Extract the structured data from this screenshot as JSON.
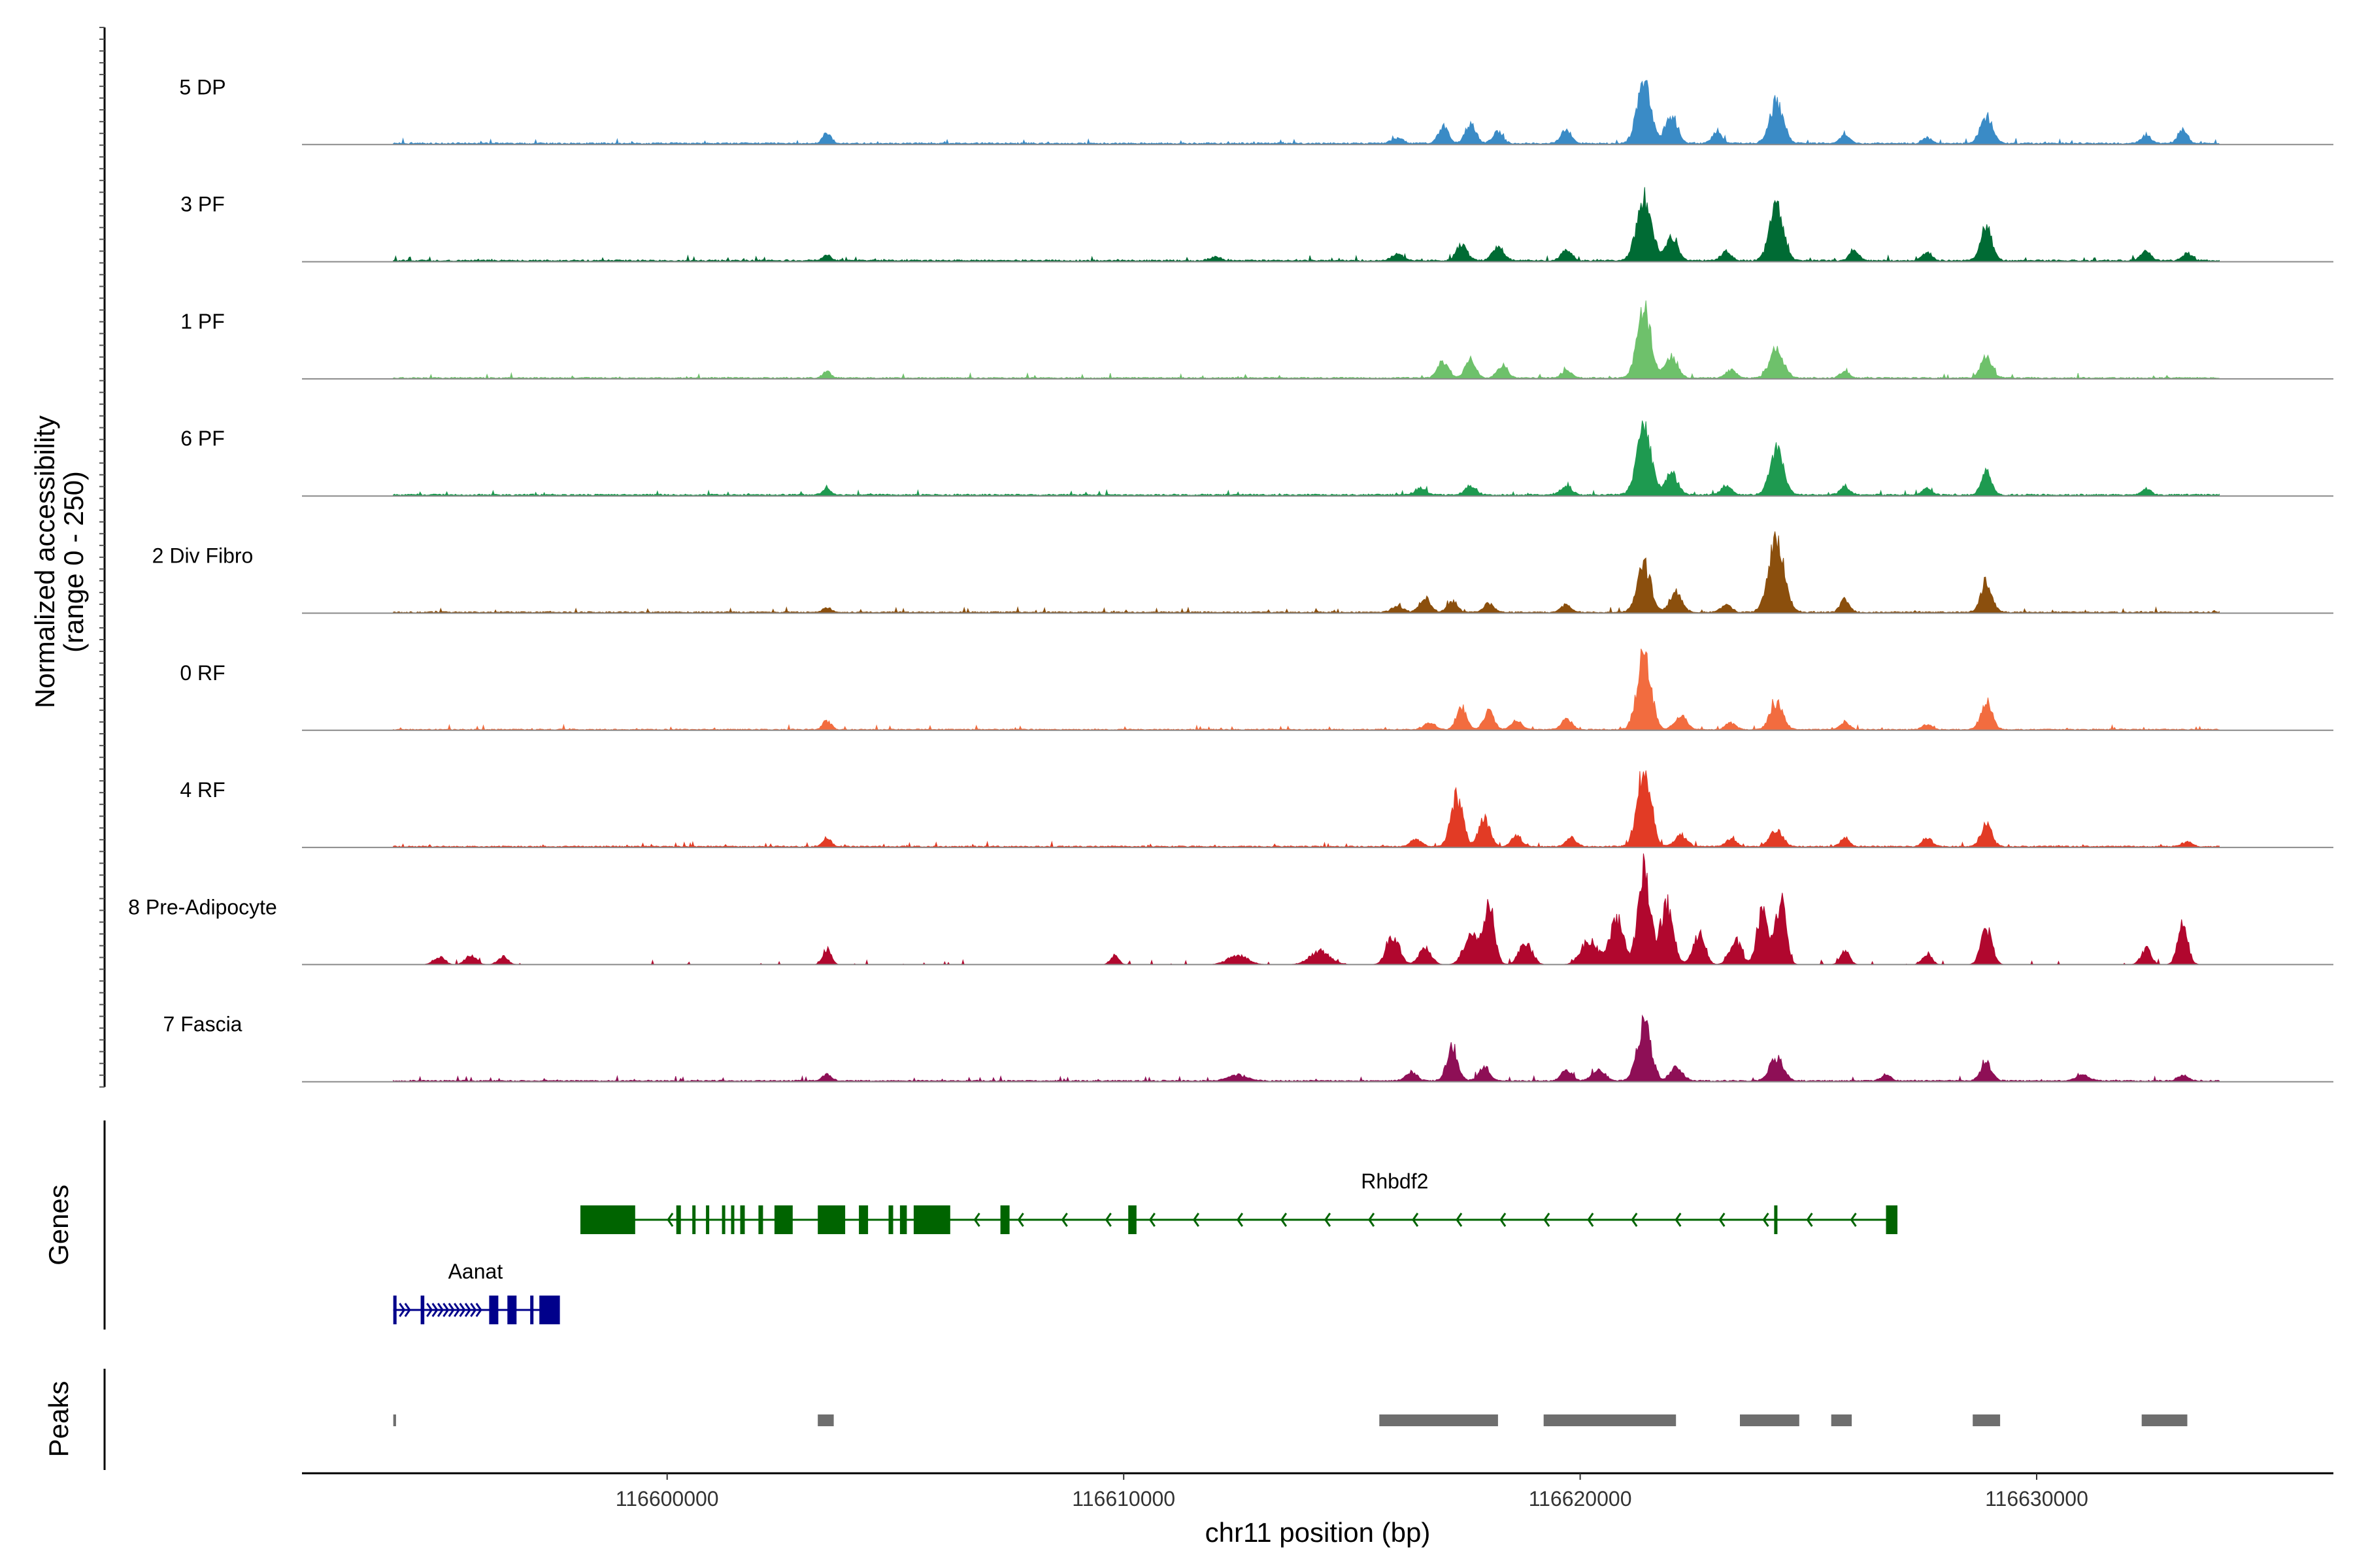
{
  "chart_data": {
    "type": "area",
    "title": "",
    "ylabel": "Normalized accessibility\n(range 0 - 250)",
    "xlabel": "chr11 position (bp)",
    "xlim": [
      116592000,
      116636500
    ],
    "ylim": [
      0,
      250
    ],
    "x_ticks": [
      116600000,
      116610000,
      116620000,
      116630000
    ],
    "x_tick_labels": [
      "116600000",
      "116610000",
      "116620000",
      "116630000"
    ],
    "signal_extent": [
      116594000,
      116634000
    ],
    "tracks": [
      {
        "name": "5 DP",
        "color": "#3a8bc6",
        "baseline": 0.015,
        "peaks": [
          [
            116603500,
            0.1,
            90
          ],
          [
            116616000,
            0.05,
            120
          ],
          [
            116617000,
            0.15,
            110
          ],
          [
            116617600,
            0.18,
            110
          ],
          [
            116618200,
            0.1,
            110
          ],
          [
            116619700,
            0.12,
            110
          ],
          [
            116621400,
            0.54,
            150
          ],
          [
            116622000,
            0.25,
            130
          ],
          [
            116623000,
            0.1,
            110
          ],
          [
            116624300,
            0.37,
            150
          ],
          [
            116625800,
            0.08,
            100
          ],
          [
            116627600,
            0.05,
            100
          ],
          [
            116628900,
            0.25,
            130
          ],
          [
            116632400,
            0.07,
            110
          ],
          [
            116633200,
            0.12,
            110
          ]
        ]
      },
      {
        "name": "3 PF",
        "color": "#006b34",
        "baseline": 0.015,
        "peaks": [
          [
            116603500,
            0.05,
            90
          ],
          [
            116612000,
            0.03,
            120
          ],
          [
            116616000,
            0.06,
            120
          ],
          [
            116617400,
            0.14,
            120
          ],
          [
            116618200,
            0.12,
            120
          ],
          [
            116619700,
            0.1,
            110
          ],
          [
            116621400,
            0.55,
            160
          ],
          [
            116622000,
            0.2,
            130
          ],
          [
            116623200,
            0.08,
            110
          ],
          [
            116624300,
            0.48,
            150
          ],
          [
            116626000,
            0.1,
            100
          ],
          [
            116627600,
            0.08,
            100
          ],
          [
            116628900,
            0.3,
            120
          ],
          [
            116632400,
            0.08,
            110
          ],
          [
            116633300,
            0.06,
            110
          ]
        ]
      },
      {
        "name": "1 PF",
        "color": "#6ec16b",
        "baseline": 0.012,
        "peaks": [
          [
            116603500,
            0.06,
            90
          ],
          [
            116617000,
            0.15,
            120
          ],
          [
            116617600,
            0.17,
            110
          ],
          [
            116618300,
            0.12,
            110
          ],
          [
            116619700,
            0.07,
            110
          ],
          [
            116621400,
            0.62,
            150
          ],
          [
            116622000,
            0.2,
            130
          ],
          [
            116623300,
            0.07,
            110
          ],
          [
            116624300,
            0.26,
            150
          ],
          [
            116625800,
            0.06,
            100
          ],
          [
            116628900,
            0.18,
            120
          ]
        ]
      },
      {
        "name": "6 PF",
        "color": "#1e9a50",
        "baseline": 0.015,
        "peaks": [
          [
            116603500,
            0.06,
            90
          ],
          [
            116616500,
            0.06,
            120
          ],
          [
            116617600,
            0.08,
            120
          ],
          [
            116619700,
            0.08,
            120
          ],
          [
            116621400,
            0.56,
            160
          ],
          [
            116622000,
            0.2,
            130
          ],
          [
            116623200,
            0.08,
            110
          ],
          [
            116624300,
            0.4,
            150
          ],
          [
            116625800,
            0.08,
            100
          ],
          [
            116627600,
            0.06,
            100
          ],
          [
            116628900,
            0.2,
            110
          ],
          [
            116632400,
            0.05,
            100
          ]
        ]
      },
      {
        "name": "2 Div Fibro",
        "color": "#8b4f0d",
        "baseline": 0.012,
        "peaks": [
          [
            116603500,
            0.04,
            90
          ],
          [
            116616000,
            0.06,
            120
          ],
          [
            116616600,
            0.12,
            120
          ],
          [
            116617200,
            0.1,
            110
          ],
          [
            116618000,
            0.08,
            110
          ],
          [
            116619700,
            0.07,
            110
          ],
          [
            116621400,
            0.42,
            150
          ],
          [
            116622100,
            0.18,
            130
          ],
          [
            116623200,
            0.07,
            110
          ],
          [
            116624300,
            0.64,
            170
          ],
          [
            116625800,
            0.12,
            100
          ],
          [
            116628900,
            0.28,
            120
          ]
        ]
      },
      {
        "name": "0 RF",
        "color": "#f26c3f",
        "baseline": 0.01,
        "peaks": [
          [
            116603500,
            0.08,
            90
          ],
          [
            116616700,
            0.06,
            120
          ],
          [
            116617400,
            0.2,
            110
          ],
          [
            116618000,
            0.17,
            110
          ],
          [
            116618600,
            0.08,
            110
          ],
          [
            116619700,
            0.1,
            110
          ],
          [
            116621400,
            0.66,
            150
          ],
          [
            116622200,
            0.12,
            130
          ],
          [
            116623300,
            0.06,
            110
          ],
          [
            116624300,
            0.24,
            140
          ],
          [
            116625800,
            0.07,
            100
          ],
          [
            116627600,
            0.05,
            100
          ],
          [
            116628900,
            0.25,
            120
          ]
        ]
      },
      {
        "name": "4 RF",
        "color": "#e23b25",
        "baseline": 0.012,
        "peaks": [
          [
            116603500,
            0.08,
            90
          ],
          [
            116616400,
            0.06,
            120
          ],
          [
            116617300,
            0.44,
            130
          ],
          [
            116617900,
            0.25,
            120
          ],
          [
            116618600,
            0.1,
            110
          ],
          [
            116619800,
            0.08,
            110
          ],
          [
            116621400,
            0.7,
            150
          ],
          [
            116622200,
            0.1,
            130
          ],
          [
            116623300,
            0.07,
            110
          ],
          [
            116624300,
            0.15,
            140
          ],
          [
            116625800,
            0.07,
            100
          ],
          [
            116627600,
            0.08,
            100
          ],
          [
            116628900,
            0.2,
            120
          ],
          [
            116633300,
            0.04,
            100
          ]
        ]
      },
      {
        "name": "8 Pre-Adipocyte",
        "color": "#b1072e",
        "baseline": 0.0,
        "peaks": [
          [
            116595000,
            0.07,
            120
          ],
          [
            116595700,
            0.08,
            120
          ],
          [
            116596400,
            0.07,
            110
          ],
          [
            116603500,
            0.14,
            90
          ],
          [
            116609800,
            0.08,
            90
          ],
          [
            116612500,
            0.08,
            220
          ],
          [
            116614300,
            0.12,
            220
          ],
          [
            116615900,
            0.26,
            140
          ],
          [
            116616600,
            0.16,
            130
          ],
          [
            116617600,
            0.28,
            150
          ],
          [
            116618000,
            0.52,
            120
          ],
          [
            116618800,
            0.2,
            140
          ],
          [
            116620200,
            0.22,
            180
          ],
          [
            116620800,
            0.4,
            150
          ],
          [
            116621400,
            0.88,
            130
          ],
          [
            116621900,
            0.55,
            140
          ],
          [
            116622600,
            0.25,
            130
          ],
          [
            116623400,
            0.22,
            130
          ],
          [
            116624000,
            0.52,
            120
          ],
          [
            116624400,
            0.58,
            110
          ],
          [
            116625800,
            0.12,
            100
          ],
          [
            116627600,
            0.1,
            100
          ],
          [
            116628900,
            0.32,
            120
          ],
          [
            116632400,
            0.14,
            110
          ],
          [
            116633200,
            0.36,
            110
          ]
        ]
      },
      {
        "name": "7 Fascia",
        "color": "#8e0f56",
        "baseline": 0.012,
        "peaks": [
          [
            116603500,
            0.06,
            90
          ],
          [
            116612500,
            0.05,
            200
          ],
          [
            116616300,
            0.08,
            120
          ],
          [
            116617200,
            0.3,
            120
          ],
          [
            116617900,
            0.12,
            120
          ],
          [
            116619700,
            0.1,
            110
          ],
          [
            116620400,
            0.1,
            140
          ],
          [
            116621400,
            0.5,
            150
          ],
          [
            116622100,
            0.12,
            130
          ],
          [
            116624300,
            0.2,
            150
          ],
          [
            116626700,
            0.06,
            100
          ],
          [
            116628900,
            0.16,
            120
          ],
          [
            116631000,
            0.05,
            150
          ],
          [
            116633200,
            0.05,
            110
          ]
        ]
      }
    ],
    "genes": [
      {
        "name": "Aanat",
        "color": "#00008b",
        "strand": "+",
        "start": 116594000,
        "end": 116597600,
        "exons": [
          [
            116594000,
            116594060
          ],
          [
            116594600,
            116594680
          ],
          [
            116596100,
            116596300
          ],
          [
            116596500,
            116596700
          ],
          [
            116597000,
            116597060
          ],
          [
            116597200,
            116597650
          ]
        ]
      },
      {
        "name": "Rhbdf2",
        "color": "#006400",
        "strand": "-",
        "start": 116598100,
        "end": 116626900,
        "exons": [
          [
            116598100,
            116599300
          ],
          [
            116600200,
            116600300
          ],
          [
            116600550,
            116600620
          ],
          [
            116600850,
            116600920
          ],
          [
            116601200,
            116601270
          ],
          [
            116601400,
            116601450
          ],
          [
            116601600,
            116601700
          ],
          [
            116602000,
            116602100
          ],
          [
            116602350,
            116602750
          ],
          [
            116603300,
            116603900
          ],
          [
            116604200,
            116604400
          ],
          [
            116604850,
            116604950
          ],
          [
            116605100,
            116605250
          ],
          [
            116605400,
            116606200
          ],
          [
            116607300,
            116607500
          ],
          [
            116610100,
            116610280
          ],
          [
            116624250,
            116624310
          ],
          [
            116626700,
            116626950
          ]
        ]
      }
    ],
    "peaks_track": [
      [
        116594000,
        116594060
      ],
      [
        116603300,
        116603650
      ],
      [
        116615600,
        116618200
      ],
      [
        116619200,
        116622100
      ],
      [
        116623500,
        116624800
      ],
      [
        116625500,
        116625950
      ],
      [
        116628600,
        116629200
      ],
      [
        116632300,
        116633300
      ]
    ],
    "panel_labels": {
      "genes": "Genes",
      "peaks": "Peaks"
    }
  }
}
